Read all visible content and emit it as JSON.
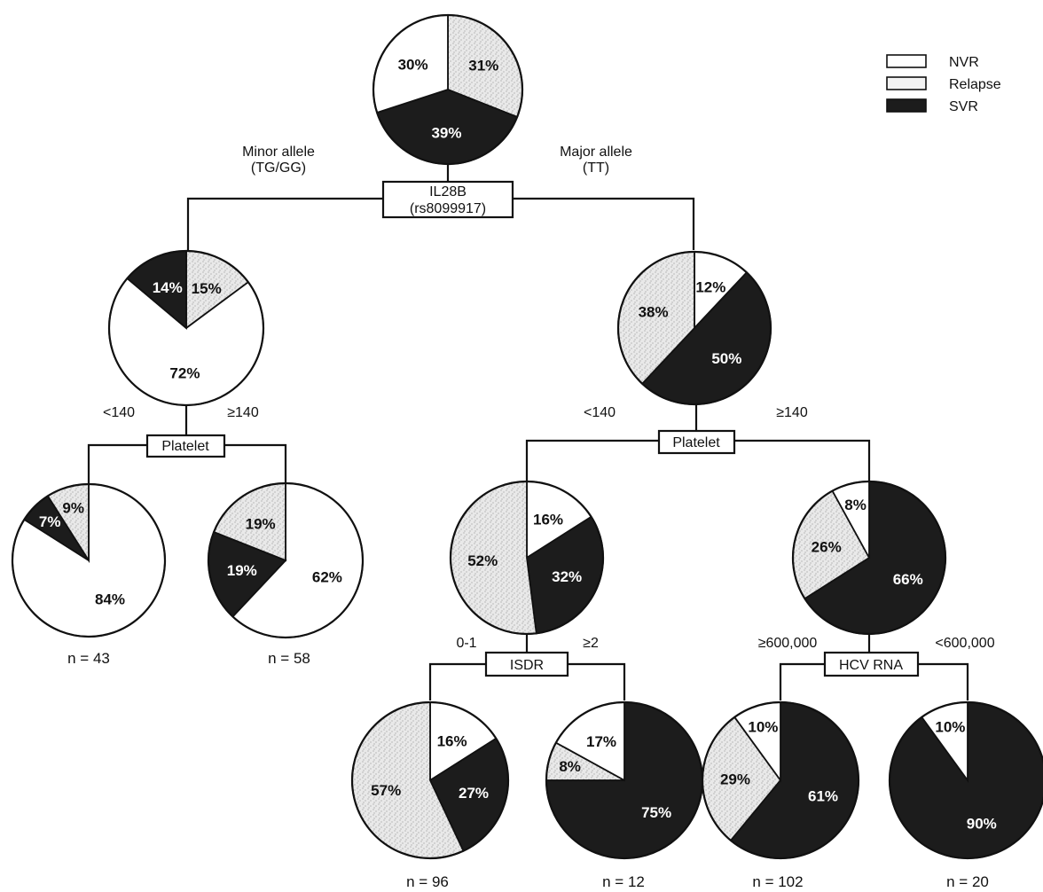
{
  "legend": [
    {
      "label": "NVR",
      "category": "nvr"
    },
    {
      "label": "Relapse",
      "category": "relapse"
    },
    {
      "label": "SVR",
      "category": "svr"
    }
  ],
  "colors": {
    "nvr": "#ffffff",
    "relapse": "#e9e9e9",
    "svr": "#1c1c1c"
  },
  "nodes": {
    "root_box": {
      "line1": "IL28B",
      "line2": "(rs8099917)"
    },
    "root_left_label": {
      "line1": "Minor allele",
      "line2": "(TG/GG)"
    },
    "root_right_label": {
      "line1": "Major allele",
      "line2": "(TT)"
    },
    "platelet_left_box": "Platelet",
    "platelet_left_low": "<140",
    "platelet_left_high": "≥140",
    "platelet_right_box": "Platelet",
    "platelet_right_low": "<140",
    "platelet_right_high": "≥140",
    "isdr_box": "ISDR",
    "isdr_low": "0-1",
    "isdr_high": "≥2",
    "hcv_box": "HCV RNA",
    "hcv_high": "≥600,000",
    "hcv_low": "<600,000"
  },
  "pies": {
    "root": {
      "slices": [
        {
          "cat": "relapse",
          "pct": "31%"
        },
        {
          "cat": "svr",
          "pct": "39%"
        },
        {
          "cat": "nvr",
          "pct": "30%"
        }
      ]
    },
    "minor": {
      "slices": [
        {
          "cat": "relapse",
          "pct": "15%"
        },
        {
          "cat": "nvr",
          "pct": "72%"
        },
        {
          "cat": "svr",
          "pct": "14%"
        }
      ]
    },
    "major": {
      "slices": [
        {
          "cat": "nvr",
          "pct": "12%"
        },
        {
          "cat": "svr",
          "pct": "50%"
        },
        {
          "cat": "relapse",
          "pct": "38%"
        }
      ]
    },
    "ml_lt": {
      "n": "n = 43",
      "slices": [
        {
          "cat": "nvr",
          "pct": "84%"
        },
        {
          "cat": "svr",
          "pct": "7%"
        },
        {
          "cat": "relapse",
          "pct": "9%"
        }
      ]
    },
    "ml_ge": {
      "n": "n = 58",
      "slices": [
        {
          "cat": "nvr",
          "pct": "62%"
        },
        {
          "cat": "svr",
          "pct": "19%"
        },
        {
          "cat": "relapse",
          "pct": "19%"
        }
      ]
    },
    "mj_lt": {
      "slices": [
        {
          "cat": "nvr",
          "pct": "16%"
        },
        {
          "cat": "svr",
          "pct": "32%"
        },
        {
          "cat": "relapse",
          "pct": "52%"
        }
      ]
    },
    "mj_ge": {
      "slices": [
        {
          "cat": "svr",
          "pct": "66%"
        },
        {
          "cat": "relapse",
          "pct": "26%"
        },
        {
          "cat": "nvr",
          "pct": "8%"
        }
      ]
    },
    "isdr_lo": {
      "n": "n = 96",
      "slices": [
        {
          "cat": "nvr",
          "pct": "16%"
        },
        {
          "cat": "svr",
          "pct": "27%"
        },
        {
          "cat": "relapse",
          "pct": "57%"
        }
      ]
    },
    "isdr_hi": {
      "n": "n = 12",
      "slices": [
        {
          "cat": "svr",
          "pct": "75%"
        },
        {
          "cat": "relapse",
          "pct": "8%"
        },
        {
          "cat": "nvr",
          "pct": "17%"
        }
      ]
    },
    "hcv_hi": {
      "n": "n = 102",
      "slices": [
        {
          "cat": "svr",
          "pct": "61%"
        },
        {
          "cat": "relapse",
          "pct": "29%"
        },
        {
          "cat": "nvr",
          "pct": "10%"
        }
      ]
    },
    "hcv_lo": {
      "n": "n = 20",
      "slices": [
        {
          "cat": "svr",
          "pct": "90%"
        },
        {
          "cat": "nvr",
          "pct": "10%"
        }
      ]
    }
  }
}
